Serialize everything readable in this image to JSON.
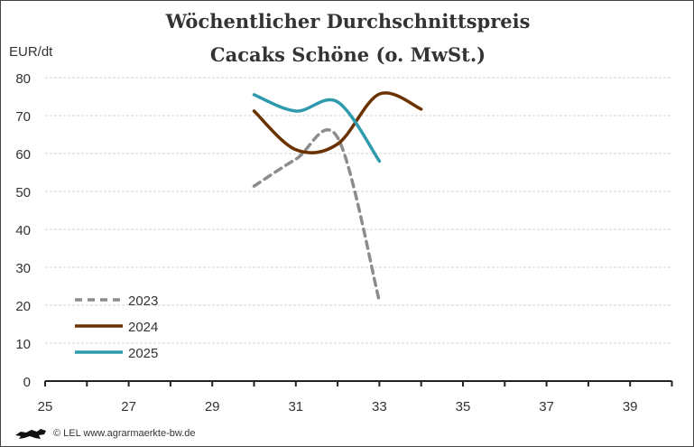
{
  "chart_data": {
    "type": "line",
    "title": "Wöchentlicher Durchschnittspreis",
    "subtitle": "Cacaks Schöne (o. MwSt.)",
    "ylabel": "EUR/dt",
    "xlabel": "",
    "xlim": [
      25,
      40
    ],
    "ylim": [
      0,
      80
    ],
    "xticks": [
      25,
      27,
      29,
      31,
      33,
      35,
      37,
      39
    ],
    "yticks": [
      0,
      10,
      20,
      30,
      40,
      50,
      60,
      70,
      80
    ],
    "grid": "horizontal",
    "legend_position": "bottom-left",
    "series": [
      {
        "name": "2023",
        "color": "#8c8c8c",
        "dashed": true,
        "x": [
          30,
          31,
          32,
          33
        ],
        "values": [
          51.4,
          58.5,
          64.2,
          21
        ]
      },
      {
        "name": "2024",
        "color": "#6b3200",
        "dashed": false,
        "x": [
          30,
          31,
          32,
          33,
          34
        ],
        "values": [
          71.2,
          61,
          62.5,
          75.7,
          71.7
        ]
      },
      {
        "name": "2025",
        "color": "#2e9aae",
        "dashed": false,
        "x": [
          30,
          31,
          32,
          33
        ],
        "values": [
          75.5,
          71.2,
          73.6,
          58
        ]
      }
    ]
  },
  "footer": {
    "text": "© LEL www.agrarmaerkte-bw.de",
    "logo": "lion-logo"
  }
}
